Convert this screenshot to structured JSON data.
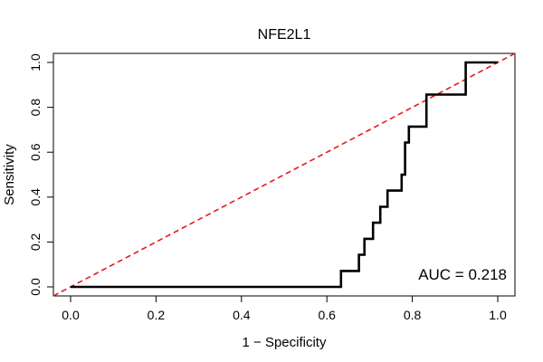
{
  "chart_data": {
    "type": "line",
    "title": "NFE2L1",
    "xlabel": "1 − Specificity",
    "ylabel": "Sensitivity",
    "xlim": [
      0,
      1
    ],
    "ylim": [
      0,
      1
    ],
    "xticks": [
      "0.0",
      "0.2",
      "0.4",
      "0.6",
      "0.8",
      "1.0"
    ],
    "yticks": [
      "0.0",
      "0.2",
      "0.4",
      "0.6",
      "0.8",
      "1.0"
    ],
    "annotation": "AUC = 0.218",
    "annotation_position": "bottom-right",
    "series": [
      {
        "name": "ROC curve",
        "color": "#000000",
        "style": "step",
        "x": [
          0.0,
          0.633,
          0.633,
          0.675,
          0.675,
          0.688,
          0.688,
          0.708,
          0.708,
          0.725,
          0.725,
          0.742,
          0.742,
          0.775,
          0.775,
          0.783,
          0.783,
          0.792,
          0.792,
          0.833,
          0.833,
          0.867,
          0.867,
          0.925,
          0.925,
          1.0
        ],
        "y": [
          0.0,
          0.0,
          0.071,
          0.071,
          0.143,
          0.143,
          0.214,
          0.214,
          0.286,
          0.286,
          0.357,
          0.357,
          0.429,
          0.429,
          0.5,
          0.5,
          0.643,
          0.643,
          0.714,
          0.714,
          0.857,
          0.857,
          0.857,
          0.857,
          1.0,
          1.0
        ]
      },
      {
        "name": "Reference diagonal",
        "color": "#e41a1c",
        "style": "dashed",
        "x": [
          0.0,
          1.0
        ],
        "y": [
          0.0,
          1.0
        ]
      }
    ]
  }
}
